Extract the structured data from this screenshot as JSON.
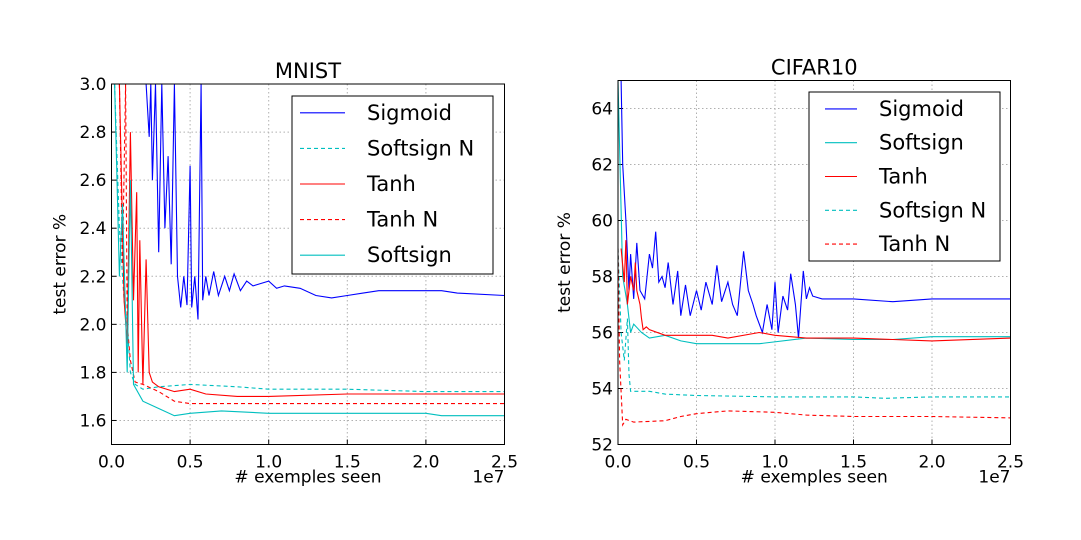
{
  "chart_data": [
    {
      "type": "line",
      "title": "MNIST",
      "xlabel": "# exemples seen",
      "ylabel": "test error %",
      "x_offset_label": "1e7",
      "xlim": [
        0,
        2.5
      ],
      "ylim": [
        1.5,
        3.0
      ],
      "xticks": [
        "0.0",
        "0.5",
        "1.0",
        "1.5",
        "2.0",
        "2.5"
      ],
      "yticks": [
        "1.6",
        "1.8",
        "2.0",
        "2.2",
        "2.4",
        "2.6",
        "2.8",
        "3.0"
      ],
      "grid": true,
      "legend_position": "top-right",
      "series": [
        {
          "name": "Sigmoid",
          "color": "#0000ff",
          "dashed": false,
          "points": [
            [
              0.22,
              3.0
            ],
            [
              0.24,
              2.78
            ],
            [
              0.25,
              3.0
            ],
            [
              0.26,
              2.6
            ],
            [
              0.28,
              3.0
            ],
            [
              0.3,
              2.3
            ],
            [
              0.32,
              3.0
            ],
            [
              0.34,
              2.4
            ],
            [
              0.36,
              2.7
            ],
            [
              0.38,
              2.25
            ],
            [
              0.4,
              3.0
            ],
            [
              0.42,
              2.2
            ],
            [
              0.44,
              2.07
            ],
            [
              0.46,
              2.2
            ],
            [
              0.48,
              2.08
            ],
            [
              0.5,
              2.66
            ],
            [
              0.51,
              2.07
            ],
            [
              0.53,
              2.2
            ],
            [
              0.55,
              2.02
            ],
            [
              0.57,
              3.0
            ],
            [
              0.58,
              2.1
            ],
            [
              0.6,
              2.2
            ],
            [
              0.62,
              2.12
            ],
            [
              0.65,
              2.22
            ],
            [
              0.68,
              2.12
            ],
            [
              0.72,
              2.2
            ],
            [
              0.75,
              2.14
            ],
            [
              0.78,
              2.21
            ],
            [
              0.82,
              2.14
            ],
            [
              0.86,
              2.18
            ],
            [
              0.9,
              2.16
            ],
            [
              0.95,
              2.17
            ],
            [
              1.0,
              2.18
            ],
            [
              1.05,
              2.15
            ],
            [
              1.1,
              2.16
            ],
            [
              1.2,
              2.15
            ],
            [
              1.3,
              2.12
            ],
            [
              1.4,
              2.11
            ],
            [
              1.5,
              2.12
            ],
            [
              1.6,
              2.13
            ],
            [
              1.7,
              2.14
            ],
            [
              2.0,
              2.14
            ],
            [
              2.1,
              2.14
            ],
            [
              2.2,
              2.13
            ],
            [
              2.5,
              2.12
            ]
          ]
        },
        {
          "name": "Softsign N",
          "color": "#00bfbf",
          "dashed": true,
          "points": [
            [
              0.02,
              3.0
            ],
            [
              0.05,
              2.4
            ],
            [
              0.08,
              2.1
            ],
            [
              0.1,
              2.0
            ],
            [
              0.12,
              1.8
            ],
            [
              0.15,
              1.75
            ],
            [
              0.2,
              1.73
            ],
            [
              0.3,
              1.74
            ],
            [
              0.5,
              1.75
            ],
            [
              0.8,
              1.74
            ],
            [
              1.0,
              1.73
            ],
            [
              1.5,
              1.73
            ],
            [
              2.0,
              1.72
            ],
            [
              2.5,
              1.72
            ]
          ]
        },
        {
          "name": "Tanh",
          "color": "#ff0000",
          "dashed": false,
          "points": [
            [
              0.05,
              3.0
            ],
            [
              0.08,
              2.1
            ],
            [
              0.1,
              1.92
            ],
            [
              0.12,
              2.8
            ],
            [
              0.14,
              2.1
            ],
            [
              0.16,
              2.55
            ],
            [
              0.17,
              1.8
            ],
            [
              0.18,
              2.35
            ],
            [
              0.2,
              1.75
            ],
            [
              0.22,
              2.27
            ],
            [
              0.24,
              1.8
            ],
            [
              0.26,
              1.76
            ],
            [
              0.3,
              1.74
            ],
            [
              0.4,
              1.72
            ],
            [
              0.5,
              1.73
            ],
            [
              0.6,
              1.71
            ],
            [
              0.8,
              1.7
            ],
            [
              1.0,
              1.7
            ],
            [
              1.5,
              1.71
            ],
            [
              2.0,
              1.71
            ],
            [
              2.5,
              1.71
            ]
          ]
        },
        {
          "name": "Tanh N",
          "color": "#ff0000",
          "dashed": true,
          "points": [
            [
              0.05,
              3.0
            ],
            [
              0.07,
              2.25
            ],
            [
              0.09,
              3.0
            ],
            [
              0.1,
              2.0
            ],
            [
              0.12,
              1.85
            ],
            [
              0.15,
              1.76
            ],
            [
              0.2,
              1.75
            ],
            [
              0.3,
              1.72
            ],
            [
              0.4,
              1.68
            ],
            [
              0.5,
              1.67
            ],
            [
              1.0,
              1.67
            ],
            [
              2.5,
              1.67
            ]
          ]
        },
        {
          "name": "Softsign",
          "color": "#00bfbf",
          "dashed": false,
          "points": [
            [
              0.02,
              3.0
            ],
            [
              0.05,
              2.2
            ],
            [
              0.07,
              2.5
            ],
            [
              0.1,
              1.8
            ],
            [
              0.12,
              2.6
            ],
            [
              0.14,
              1.75
            ],
            [
              0.2,
              1.68
            ],
            [
              0.3,
              1.65
            ],
            [
              0.4,
              1.62
            ],
            [
              0.5,
              1.63
            ],
            [
              0.7,
              1.64
            ],
            [
              1.0,
              1.63
            ],
            [
              1.5,
              1.63
            ],
            [
              2.0,
              1.63
            ],
            [
              2.1,
              1.62
            ],
            [
              2.5,
              1.62
            ]
          ]
        }
      ]
    },
    {
      "type": "line",
      "title": "CIFAR10",
      "xlabel": "# exemples seen",
      "ylabel": "test error %",
      "x_offset_label": "1e7",
      "xlim": [
        0,
        2.5
      ],
      "ylim": [
        52,
        65
      ],
      "xticks": [
        "0.0",
        "0.5",
        "1.0",
        "1.5",
        "2.0",
        "2.5"
      ],
      "yticks": [
        "52",
        "54",
        "56",
        "58",
        "60",
        "62",
        "64"
      ],
      "grid": true,
      "legend_position": "top-right",
      "series": [
        {
          "name": "Sigmoid",
          "color": "#0000ff",
          "dashed": false,
          "points": [
            [
              0.02,
              65
            ],
            [
              0.03,
              62
            ],
            [
              0.05,
              60
            ],
            [
              0.07,
              57.5
            ],
            [
              0.08,
              58.8
            ],
            [
              0.1,
              57.2
            ],
            [
              0.12,
              59.2
            ],
            [
              0.14,
              57.5
            ],
            [
              0.17,
              57.2
            ],
            [
              0.2,
              58.8
            ],
            [
              0.22,
              58.3
            ],
            [
              0.24,
              59.6
            ],
            [
              0.26,
              57.8
            ],
            [
              0.28,
              58.0
            ],
            [
              0.3,
              57.6
            ],
            [
              0.32,
              58.5
            ],
            [
              0.35,
              57.0
            ],
            [
              0.38,
              58.2
            ],
            [
              0.4,
              56.6
            ],
            [
              0.43,
              57.7
            ],
            [
              0.46,
              56.6
            ],
            [
              0.5,
              57.5
            ],
            [
              0.53,
              56.8
            ],
            [
              0.56,
              57.8
            ],
            [
              0.6,
              57.0
            ],
            [
              0.63,
              58.4
            ],
            [
              0.66,
              57.1
            ],
            [
              0.7,
              57.8
            ],
            [
              0.73,
              57.0
            ],
            [
              0.76,
              56.6
            ],
            [
              0.8,
              58.9
            ],
            [
              0.83,
              57.5
            ],
            [
              0.86,
              57.0
            ],
            [
              0.88,
              56.6
            ],
            [
              0.92,
              56.0
            ],
            [
              0.95,
              57.0
            ],
            [
              0.98,
              56.1
            ],
            [
              1.0,
              57.8
            ],
            [
              1.02,
              56.0
            ],
            [
              1.05,
              57.3
            ],
            [
              1.08,
              56.8
            ],
            [
              1.1,
              58.1
            ],
            [
              1.13,
              57.0
            ],
            [
              1.15,
              55.8
            ],
            [
              1.18,
              58.2
            ],
            [
              1.2,
              57.2
            ],
            [
              1.22,
              57.6
            ],
            [
              1.24,
              57.3
            ],
            [
              1.3,
              57.2
            ],
            [
              1.5,
              57.2
            ],
            [
              1.75,
              57.1
            ],
            [
              2.0,
              57.2
            ],
            [
              2.2,
              57.2
            ],
            [
              2.5,
              57.2
            ]
          ]
        },
        {
          "name": "Softsign",
          "color": "#00bfbf",
          "dashed": false,
          "points": [
            [
              0.0,
              65
            ],
            [
              0.03,
              58
            ],
            [
              0.06,
              57
            ],
            [
              0.08,
              56.0
            ],
            [
              0.1,
              56.3
            ],
            [
              0.15,
              56.0
            ],
            [
              0.2,
              55.8
            ],
            [
              0.3,
              55.9
            ],
            [
              0.4,
              55.7
            ],
            [
              0.5,
              55.6
            ],
            [
              0.7,
              55.6
            ],
            [
              0.9,
              55.6
            ],
            [
              1.2,
              55.8
            ],
            [
              1.5,
              55.75
            ],
            [
              1.75,
              55.75
            ],
            [
              2.0,
              55.85
            ],
            [
              2.5,
              55.85
            ]
          ]
        },
        {
          "name": "Tanh",
          "color": "#ff0000",
          "dashed": false,
          "points": [
            [
              0.02,
              59
            ],
            [
              0.04,
              57.8
            ],
            [
              0.05,
              59.3
            ],
            [
              0.06,
              57
            ],
            [
              0.08,
              58
            ],
            [
              0.1,
              57.5
            ],
            [
              0.11,
              58.5
            ],
            [
              0.12,
              57.5
            ],
            [
              0.14,
              57
            ],
            [
              0.15,
              56.5
            ],
            [
              0.16,
              56.1
            ],
            [
              0.18,
              56.2
            ],
            [
              0.2,
              56.1
            ],
            [
              0.3,
              55.9
            ],
            [
              0.4,
              55.9
            ],
            [
              0.6,
              55.9
            ],
            [
              0.7,
              55.8
            ],
            [
              0.9,
              56.0
            ],
            [
              1.0,
              55.9
            ],
            [
              1.2,
              55.8
            ],
            [
              1.5,
              55.8
            ],
            [
              1.75,
              55.75
            ],
            [
              2.0,
              55.7
            ],
            [
              2.5,
              55.8
            ]
          ]
        },
        {
          "name": "Softsign N",
          "color": "#00bfbf",
          "dashed": true,
          "points": [
            [
              0.0,
              59
            ],
            [
              0.02,
              56
            ],
            [
              0.04,
              55
            ],
            [
              0.06,
              56.5
            ],
            [
              0.07,
              54.5
            ],
            [
              0.08,
              53.9
            ],
            [
              0.1,
              53.9
            ],
            [
              0.2,
              53.9
            ],
            [
              0.3,
              53.8
            ],
            [
              0.5,
              53.75
            ],
            [
              1.0,
              53.7
            ],
            [
              1.5,
              53.7
            ],
            [
              1.7,
              53.65
            ],
            [
              2.0,
              53.7
            ],
            [
              2.5,
              53.7
            ]
          ]
        },
        {
          "name": "Tanh N",
          "color": "#ff0000",
          "dashed": true,
          "points": [
            [
              0.0,
              59
            ],
            [
              0.01,
              55
            ],
            [
              0.03,
              52.7
            ],
            [
              0.05,
              52.9
            ],
            [
              0.1,
              52.8
            ],
            [
              0.3,
              52.85
            ],
            [
              0.4,
              53.0
            ],
            [
              0.5,
              53.1
            ],
            [
              0.7,
              53.2
            ],
            [
              1.0,
              53.15
            ],
            [
              1.2,
              53.05
            ],
            [
              1.5,
              53.0
            ],
            [
              2.0,
              53.0
            ],
            [
              2.5,
              52.95
            ]
          ]
        }
      ]
    }
  ]
}
